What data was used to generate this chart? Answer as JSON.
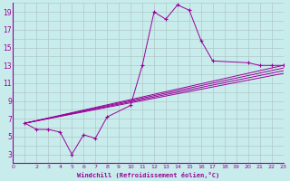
{
  "xlabel": "Windchill (Refroidissement éolien,°C)",
  "bg_color": "#c8ecec",
  "line_color": "#990099",
  "grid_color": "#b0c8c8",
  "xlim": [
    0,
    23
  ],
  "ylim": [
    2,
    20
  ],
  "xticks": [
    0,
    2,
    3,
    4,
    5,
    6,
    7,
    8,
    9,
    10,
    11,
    12,
    13,
    14,
    15,
    16,
    17,
    18,
    19,
    20,
    21,
    22,
    23
  ],
  "yticks": [
    3,
    5,
    7,
    9,
    11,
    13,
    15,
    17,
    19
  ],
  "main_series": {
    "x": [
      1,
      2,
      3,
      4,
      5,
      6,
      7,
      8,
      10,
      11,
      12,
      13,
      14,
      15,
      16,
      17,
      20,
      21,
      22,
      23
    ],
    "y": [
      6.5,
      5.8,
      5.8,
      5.5,
      3.0,
      5.2,
      4.8,
      7.2,
      8.5,
      13.0,
      19.0,
      18.2,
      19.8,
      19.2,
      15.8,
      13.5,
      13.3,
      13.0,
      13.0,
      13.0
    ]
  },
  "straight_lines": [
    {
      "x": [
        1,
        23
      ],
      "y": [
        6.5,
        13.0
      ]
    },
    {
      "x": [
        1,
        23
      ],
      "y": [
        6.5,
        12.7
      ]
    },
    {
      "x": [
        1,
        23
      ],
      "y": [
        6.5,
        12.4
      ]
    },
    {
      "x": [
        1,
        23
      ],
      "y": [
        6.5,
        12.1
      ]
    }
  ]
}
